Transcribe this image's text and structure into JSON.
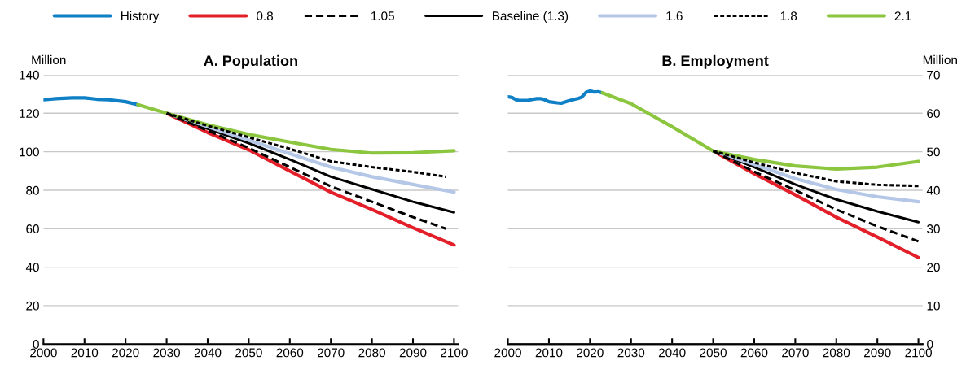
{
  "chart_data": [
    {
      "type": "line",
      "title": "A. Population",
      "ylabel": "Million",
      "legend": "top",
      "grid": "y",
      "xlim": [
        2000,
        2101
      ],
      "xticks": [
        2000,
        2010,
        2020,
        2030,
        2040,
        2050,
        2060,
        2070,
        2080,
        2090,
        2100
      ],
      "ylim": [
        0,
        140
      ],
      "yticks": [
        0,
        20,
        40,
        60,
        80,
        100,
        120,
        140
      ],
      "series": [
        {
          "name": "History",
          "color": "#0f7fc6",
          "line_style": "solid",
          "x": [
            2000,
            2003,
            2007,
            2010,
            2013,
            2016,
            2020,
            2023
          ],
          "values": [
            127,
            127.6,
            128,
            128,
            127.3,
            127,
            126,
            124.5
          ]
        },
        {
          "name": "0.8",
          "color": "#e3202a",
          "line_style": "solid",
          "x": [
            2030,
            2040,
            2050,
            2060,
            2070,
            2080,
            2090,
            2100
          ],
          "values": [
            120,
            110,
            101,
            90,
            79,
            70,
            60.5,
            51.5
          ]
        },
        {
          "name": "1.05",
          "color": "#000000",
          "line_style": "dashed",
          "x": [
            2030,
            2040,
            2050,
            2060,
            2070,
            2080,
            2090,
            2098
          ],
          "values": [
            120,
            111,
            102,
            92,
            82,
            74,
            66,
            60
          ]
        },
        {
          "name": "Baseline (1.3)",
          "color": "#000000",
          "line_style": "solid",
          "x": [
            2030,
            2040,
            2050,
            2060,
            2070,
            2080,
            2090,
            2100
          ],
          "values": [
            120,
            112,
            104.5,
            96,
            87,
            80.5,
            74,
            68.5
          ]
        },
        {
          "name": "1.6",
          "color": "#b4c7e7",
          "line_style": "solid",
          "x": [
            2030,
            2040,
            2050,
            2060,
            2070,
            2080,
            2090,
            2100
          ],
          "values": [
            120,
            113,
            106,
            99,
            92,
            87,
            83,
            79
          ]
        },
        {
          "name": "1.8",
          "color": "#000000",
          "line_style": "dotted",
          "x": [
            2030,
            2040,
            2050,
            2060,
            2070,
            2080,
            2090,
            2098
          ],
          "values": [
            120,
            113.5,
            107.5,
            101.5,
            95,
            92,
            89.5,
            87
          ]
        },
        {
          "name": "2.1",
          "color": "#8cc63f",
          "line_style": "solid",
          "x": [
            2023,
            2030,
            2040,
            2050,
            2060,
            2070,
            2080,
            2090,
            2100
          ],
          "values": [
            124.5,
            120,
            114,
            109,
            105,
            101.2,
            99.3,
            99.5,
            100.5
          ]
        }
      ]
    },
    {
      "type": "line",
      "title": "B. Employment",
      "y2label": "Million",
      "grid": "y",
      "xlim": [
        2000,
        2101
      ],
      "xticks": [
        2000,
        2010,
        2020,
        2030,
        2040,
        2050,
        2060,
        2070,
        2080,
        2090,
        2100
      ],
      "y2lim": [
        0,
        70
      ],
      "y2ticks": [
        0,
        10,
        20,
        30,
        40,
        50,
        60,
        70
      ],
      "series": [
        {
          "color": "#0f7fc6",
          "line_style": "solid",
          "axis": "y2",
          "x": [
            2000,
            2001,
            2002,
            2003,
            2005,
            2007,
            2008,
            2009,
            2010,
            2012,
            2013,
            2015,
            2017,
            2018,
            2019,
            2020,
            2021,
            2022,
            2023
          ],
          "values": [
            64.3,
            64.1,
            63.5,
            63.3,
            63.4,
            63.8,
            63.8,
            63.5,
            63,
            62.7,
            62.6,
            63.3,
            63.8,
            64.2,
            65.4,
            65.8,
            65.5,
            65.6,
            65.3
          ]
        },
        {
          "color": "#e3202a",
          "line_style": "solid",
          "axis": "y2",
          "x": [
            2050,
            2060,
            2070,
            2080,
            2090,
            2100
          ],
          "values": [
            50.2,
            44.3,
            38.8,
            33,
            27.8,
            22.5
          ]
        },
        {
          "color": "#000000",
          "line_style": "dashed",
          "axis": "y2",
          "x": [
            2050,
            2060,
            2070,
            2080,
            2090,
            2100
          ],
          "values": [
            50.2,
            44.8,
            40,
            35,
            30.6,
            26.7
          ]
        },
        {
          "color": "#000000",
          "line_style": "solid",
          "axis": "y2",
          "x": [
            2050,
            2060,
            2070,
            2080,
            2090,
            2100
          ],
          "values": [
            50.2,
            46,
            41.5,
            37.6,
            34.5,
            31.7
          ]
        },
        {
          "color": "#b4c7e7",
          "line_style": "solid",
          "axis": "y2",
          "x": [
            2050,
            2060,
            2070,
            2080,
            2090,
            2100
          ],
          "values": [
            50.2,
            46.7,
            43,
            40.2,
            38.3,
            37
          ]
        },
        {
          "color": "#000000",
          "line_style": "dotted",
          "axis": "y2",
          "x": [
            2050,
            2060,
            2070,
            2080,
            2090,
            2100
          ],
          "values": [
            50.2,
            47.2,
            44.5,
            42.3,
            41.4,
            41.1
          ]
        },
        {
          "color": "#8cc63f",
          "line_style": "solid",
          "axis": "y2",
          "x": [
            2023,
            2030,
            2040,
            2050,
            2060,
            2070,
            2080,
            2090,
            2100
          ],
          "values": [
            65.3,
            62.5,
            56.5,
            50.2,
            48,
            46.3,
            45.5,
            46,
            47.5
          ]
        }
      ]
    }
  ]
}
